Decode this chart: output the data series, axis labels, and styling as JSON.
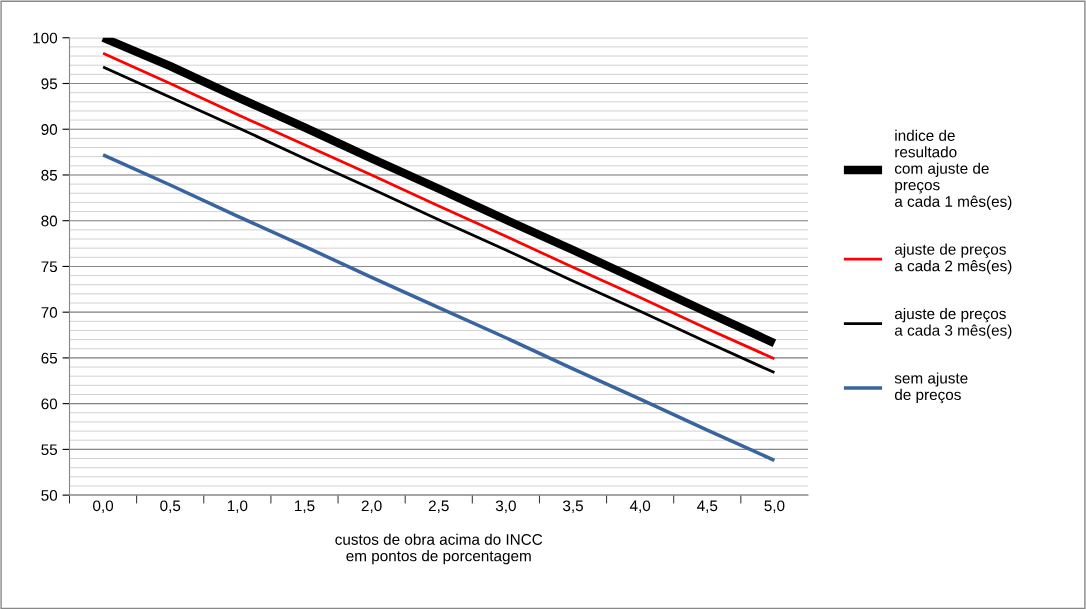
{
  "chart_data": {
    "type": "line",
    "categories": [
      "0,0",
      "0,5",
      "1,0",
      "1,5",
      "2,0",
      "2,5",
      "3,0",
      "3,5",
      "4,0",
      "4,5",
      "5,0"
    ],
    "xlabel": "custos de obra acima do INCC\nem pontos de porcentagem",
    "ylim": [
      50,
      100
    ],
    "yticks": [
      50,
      55,
      60,
      65,
      70,
      75,
      80,
      85,
      90,
      95,
      100
    ],
    "grid": "y",
    "legend": "right",
    "marker": "none",
    "line_style": "solid",
    "series": [
      {
        "name": "indice de\nresultado\ncom ajuste de\npreços\na cada 1 mês(es)",
        "color": "#000000",
        "values": [
          100,
          96.9,
          93.5,
          90.2,
          86.8,
          83.5,
          80.1,
          76.8,
          73.4,
          70.0,
          66.6
        ]
      },
      {
        "name": "ajuste de preços\na cada 2 mês(es)",
        "color": "#ff0000",
        "values": [
          98.3,
          95.0,
          91.6,
          88.3,
          85.0,
          81.6,
          78.3,
          74.9,
          71.6,
          68.2,
          64.9
        ]
      },
      {
        "name": "ajuste de preços\na cada 3 mês(es)",
        "color": "#000000",
        "values": [
          96.8,
          93.5,
          90.2,
          86.8,
          83.5,
          80.1,
          76.8,
          73.4,
          70.1,
          66.7,
          63.4
        ]
      },
      {
        "name": "sem ajuste\nde preços",
        "color": "#3a64a0",
        "values": [
          87.2,
          83.9,
          80.5,
          77.2,
          73.8,
          70.5,
          67.2,
          63.8,
          60.5,
          57.1,
          53.8
        ]
      }
    ]
  }
}
